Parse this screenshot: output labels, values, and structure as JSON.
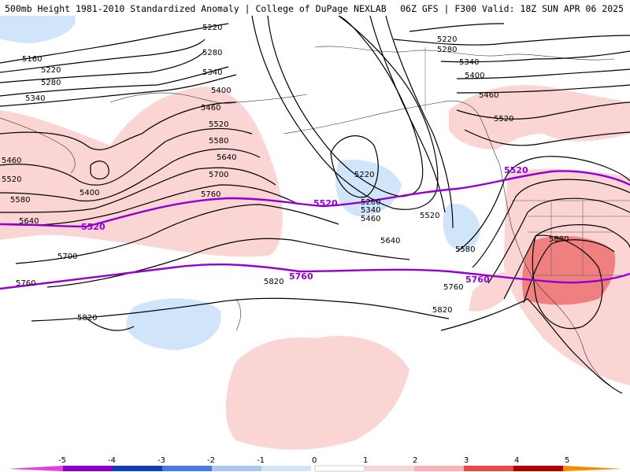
{
  "header": {
    "title": "500mb Height 1981-2010 Standardized Anomaly | College of DuPage NEXLAB",
    "run_info": "06Z GFS | F300 Valid: 18Z SUN APR 06 2025"
  },
  "colors": {
    "neg5": "#e040e0",
    "neg4": "#8a00c8",
    "neg3": "#1040b0",
    "neg2": "#4a7ae0",
    "neg1": "#a8c8f0",
    "neg05": "#d0e4fa",
    "pos05": "#fbd4d4",
    "pos1": "#f8b4b4",
    "pos2": "#f08080",
    "pos3": "#e84848",
    "pos4": "#b00000",
    "pos5": "#f09000",
    "highlight_contour": "#9400d3",
    "contour": "#000000"
  },
  "contour_labels": [
    {
      "id": "l5220a",
      "text": "5220"
    },
    {
      "id": "l5280a",
      "text": "5280"
    },
    {
      "id": "l5340a",
      "text": "5340"
    },
    {
      "id": "l5400a",
      "text": "5400"
    },
    {
      "id": "l5460a",
      "text": "5460"
    },
    {
      "id": "l5520a",
      "text": "5520"
    },
    {
      "id": "l5580a",
      "text": "5580"
    },
    {
      "id": "l5640a",
      "text": "5640"
    },
    {
      "id": "l5700a",
      "text": "5700"
    },
    {
      "id": "l5760a",
      "text": "5760"
    },
    {
      "id": "l5160w",
      "text": "5160"
    },
    {
      "id": "l5220w",
      "text": "5220"
    },
    {
      "id": "l5280w",
      "text": "5280"
    },
    {
      "id": "l5340w",
      "text": "5340"
    },
    {
      "id": "l5460w",
      "text": "5460"
    },
    {
      "id": "l5520w",
      "text": "5520"
    },
    {
      "id": "l5580w",
      "text": "5580"
    },
    {
      "id": "l5640w",
      "text": "5640"
    },
    {
      "id": "l5400w",
      "text": "5400"
    },
    {
      "id": "l5700w",
      "text": "5700"
    },
    {
      "id": "l5760w",
      "text": "5760"
    },
    {
      "id": "l5820a",
      "text": "5820"
    },
    {
      "id": "l5820w",
      "text": "5820"
    },
    {
      "id": "l5220l",
      "text": "5220"
    },
    {
      "id": "l5280l",
      "text": "5280"
    },
    {
      "id": "l5340l",
      "text": "5340"
    },
    {
      "id": "l5460l",
      "text": "5460"
    },
    {
      "id": "l5520l",
      "text": "5520"
    },
    {
      "id": "l5640l",
      "text": "5640"
    },
    {
      "id": "l5580l",
      "text": "5580"
    },
    {
      "id": "l5760l",
      "text": "5760"
    },
    {
      "id": "l5820l",
      "text": "5820"
    },
    {
      "id": "l5220e",
      "text": "5220"
    },
    {
      "id": "l5280e",
      "text": "5280"
    },
    {
      "id": "l5340e",
      "text": "5340"
    },
    {
      "id": "l5400e",
      "text": "5400"
    },
    {
      "id": "l5460e",
      "text": "5460"
    },
    {
      "id": "l5520e",
      "text": "5520"
    },
    {
      "id": "l5880e",
      "text": "5880"
    }
  ],
  "highlight_labels": [
    {
      "id": "h5520a",
      "text": "5520"
    },
    {
      "id": "h5520b",
      "text": "5520"
    },
    {
      "id": "h5520c",
      "text": "5520"
    },
    {
      "id": "h5760a",
      "text": "5760"
    },
    {
      "id": "h5760b",
      "text": "5760"
    }
  ],
  "colorbar": {
    "ticks": [
      "-5",
      "-4",
      "-3",
      "-2",
      "-1",
      "0",
      "1",
      "2",
      "3",
      "4",
      "5"
    ]
  }
}
